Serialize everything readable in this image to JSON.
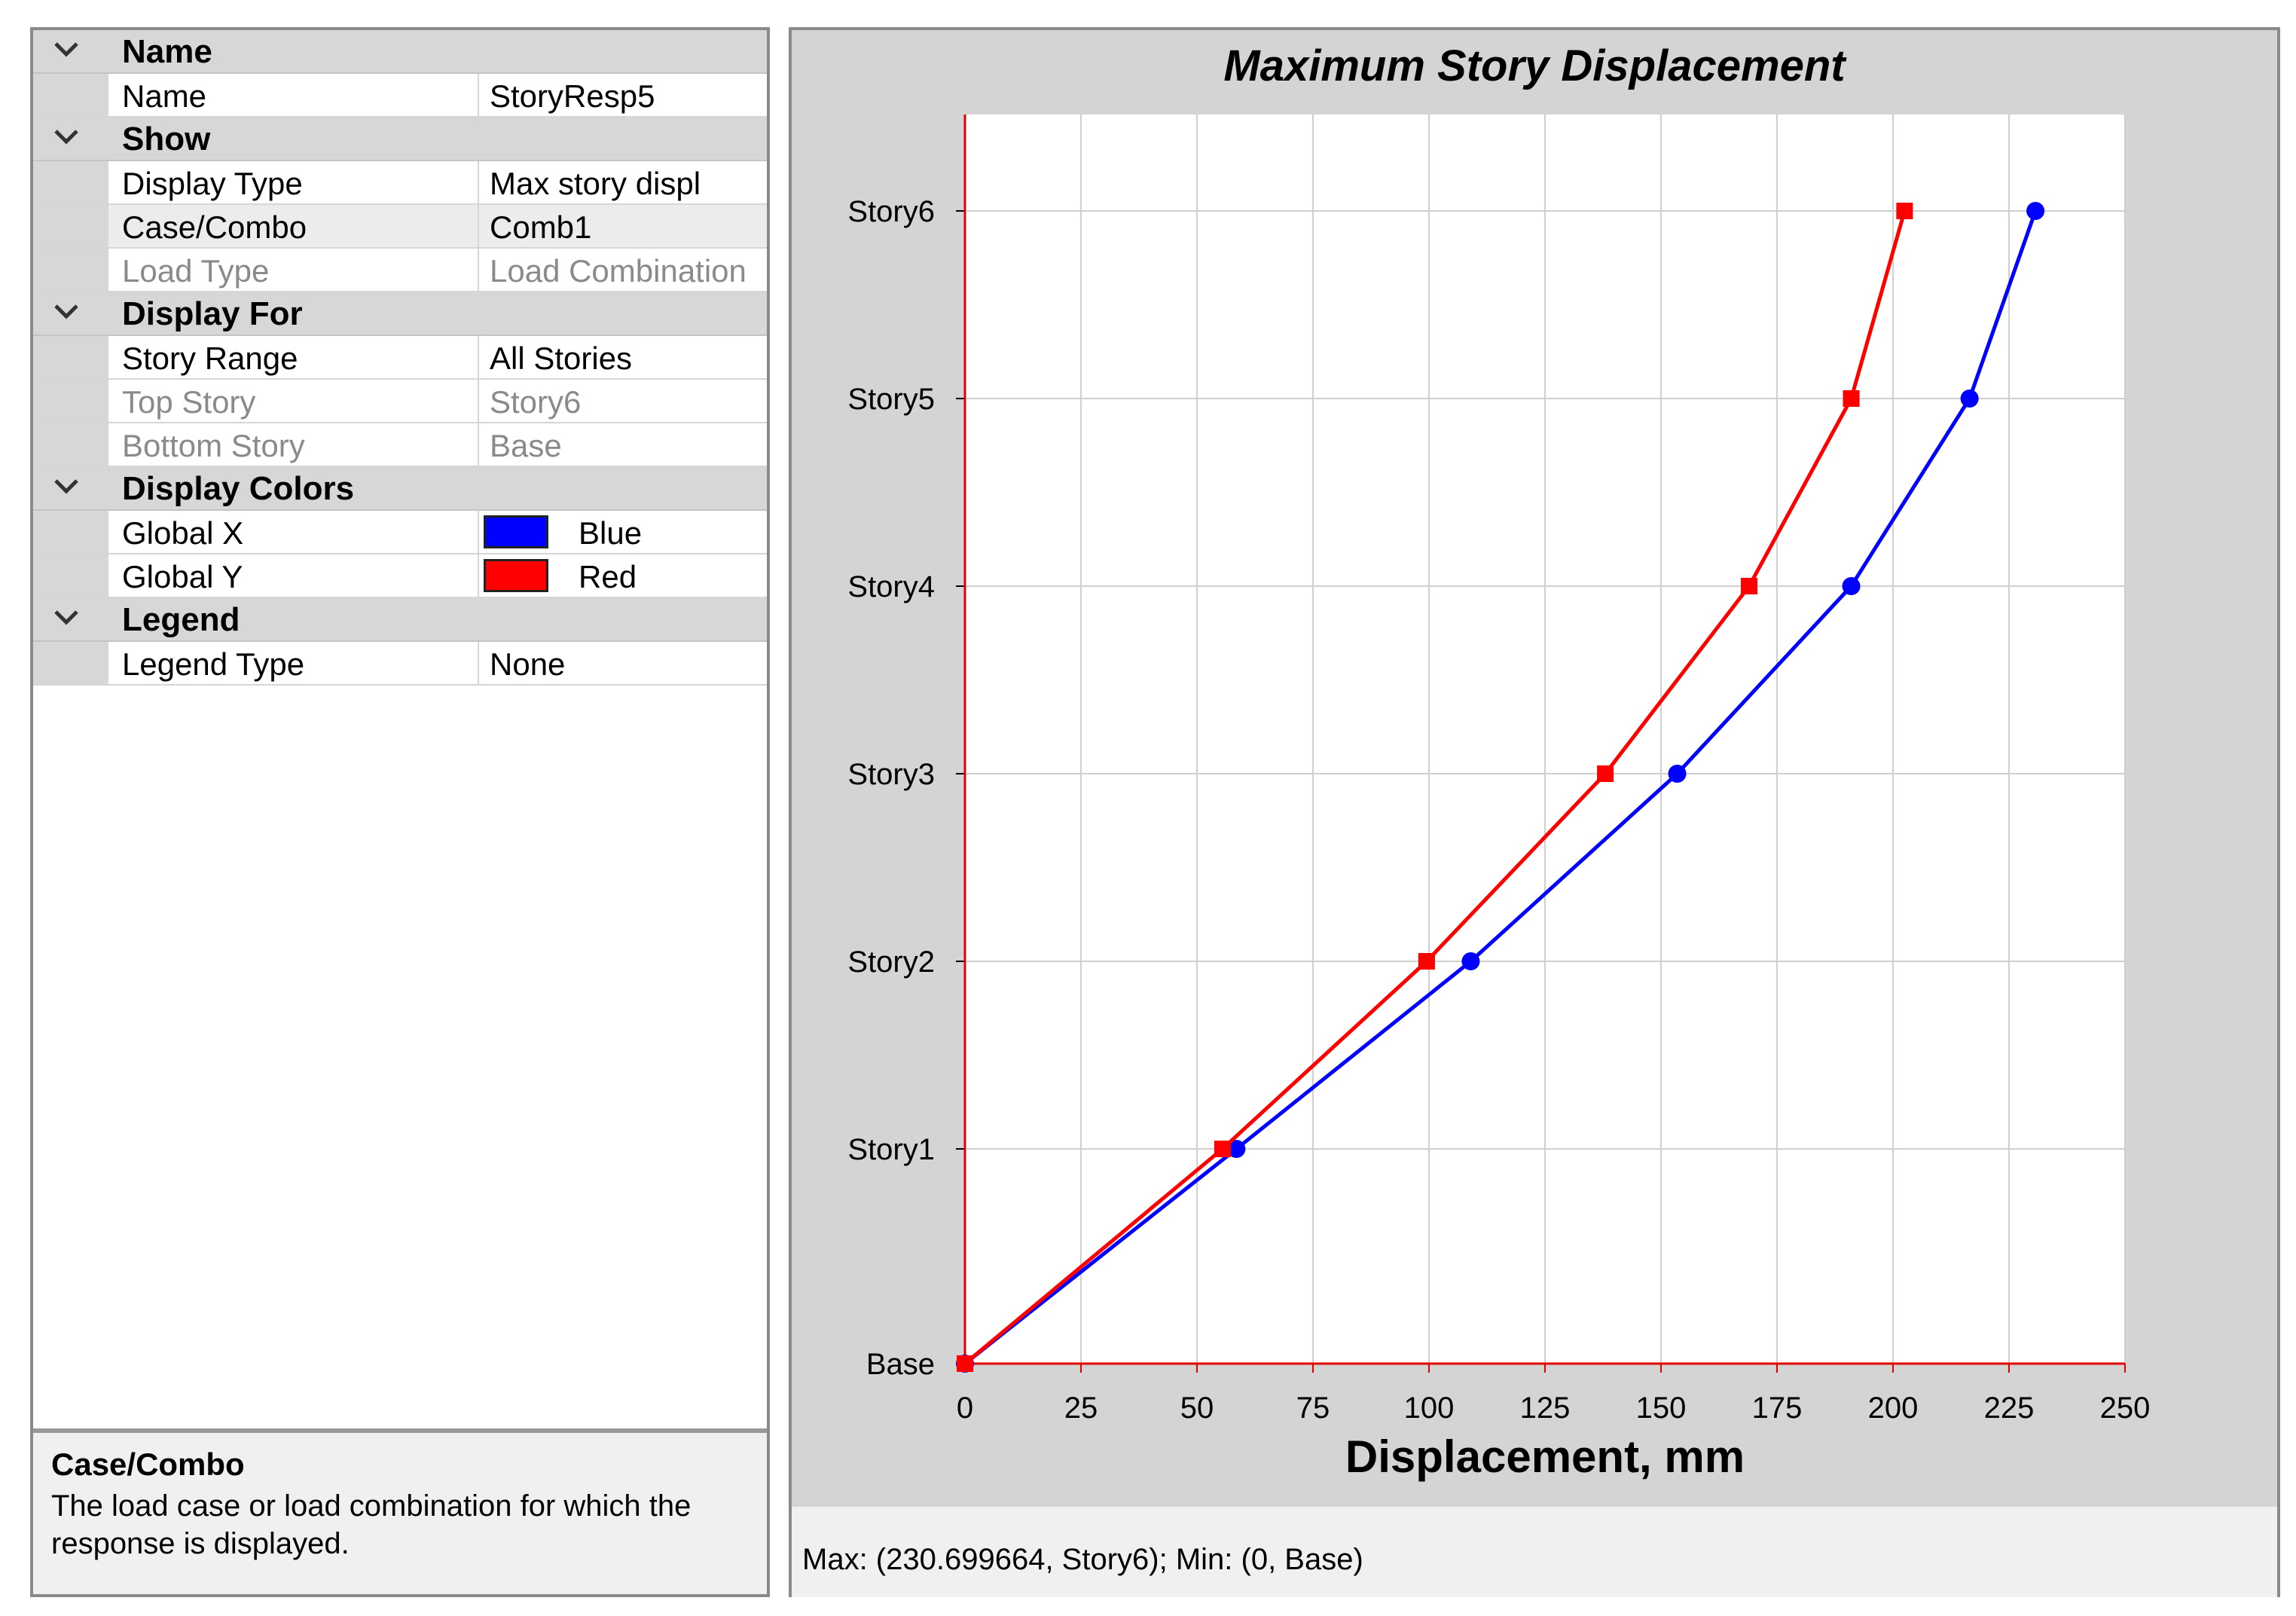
{
  "properties": {
    "categories": [
      {
        "label": "Name",
        "rows": [
          {
            "name": "Name",
            "value": "StoryResp5"
          }
        ]
      },
      {
        "label": "Show",
        "rows": [
          {
            "name": "Display Type",
            "value": "Max story displ"
          },
          {
            "name": "Case/Combo",
            "value": "Comb1",
            "selected": true
          },
          {
            "name": "Load Type",
            "value": "Load Combination",
            "dim": true
          }
        ]
      },
      {
        "label": "Display For",
        "rows": [
          {
            "name": "Story Range",
            "value": "All Stories"
          },
          {
            "name": "Top Story",
            "value": "Story6",
            "dim": true
          },
          {
            "name": "Bottom Story",
            "value": "Base",
            "dim": true
          }
        ]
      },
      {
        "label": "Display Colors",
        "rows": [
          {
            "name": "Global X",
            "value": "Blue",
            "color": "#0000ff"
          },
          {
            "name": "Global Y",
            "value": "Red",
            "color": "#ff0000"
          }
        ]
      },
      {
        "label": "Legend",
        "rows": [
          {
            "name": "Legend Type",
            "value": "None"
          }
        ]
      }
    ]
  },
  "description": {
    "title": "Case/Combo",
    "text": "The load case or load combination for which the response is displayed."
  },
  "status": {
    "text": "Max: (230.699664, Story6);   Min: (0, Base)"
  },
  "chart_data": {
    "type": "line",
    "title": "Maximum Story Displacement",
    "xlabel": "Displacement, mm",
    "ylabel": "",
    "xlim": [
      0,
      250
    ],
    "x_ticks": [
      0,
      25,
      50,
      75,
      100,
      125,
      150,
      175,
      200,
      225,
      250
    ],
    "categories": [
      "Base",
      "Story1",
      "Story2",
      "Story3",
      "Story4",
      "Story5",
      "Story6"
    ],
    "grid": true,
    "legend": "none",
    "series": [
      {
        "color": "#0000ff",
        "marker": "circle",
        "values": [
          0,
          58.5,
          109,
          153.5,
          191,
          216.5,
          230.7
        ]
      },
      {
        "color": "#ff0000",
        "marker": "square",
        "values": [
          0,
          55.5,
          99.5,
          138,
          169,
          191,
          202.5
        ]
      }
    ]
  }
}
